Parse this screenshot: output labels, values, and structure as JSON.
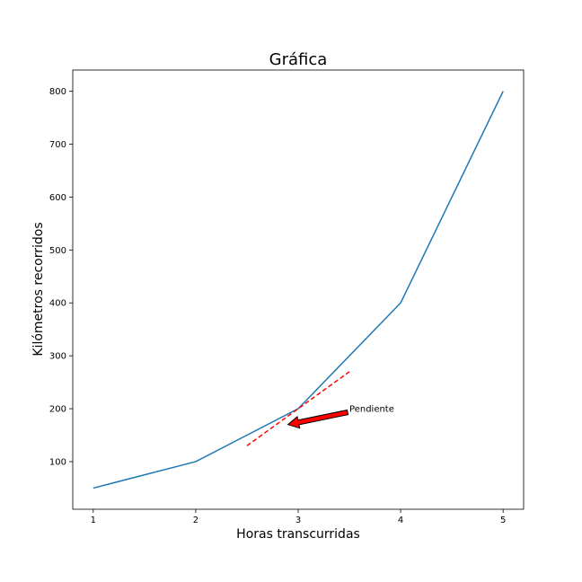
{
  "chart_data": {
    "type": "line",
    "title": "Gráfica",
    "xlabel": "Horas transcurridas",
    "ylabel": "Kilómetros recorridos",
    "xlim": [
      0.8,
      5.2
    ],
    "ylim": [
      10,
      840
    ],
    "xticks": [
      1,
      2,
      3,
      4,
      5
    ],
    "yticks": [
      100,
      200,
      300,
      400,
      500,
      600,
      700,
      800
    ],
    "grid": false,
    "series": [
      {
        "x": [
          1,
          2,
          3,
          4,
          5
        ],
        "y": [
          50,
          100,
          200,
          400,
          800
        ],
        "color": "#1f77b4"
      }
    ],
    "tangent_line": {
      "x": [
        2.5,
        3.5
      ],
      "y": [
        130,
        270
      ],
      "color": "#ff0000",
      "style": "dashed"
    },
    "annotation": {
      "text": "Pendiente",
      "text_at": [
        3.5,
        200
      ],
      "arrow_to": [
        2.9,
        170
      ],
      "arrow_color": "#ff0000"
    }
  }
}
